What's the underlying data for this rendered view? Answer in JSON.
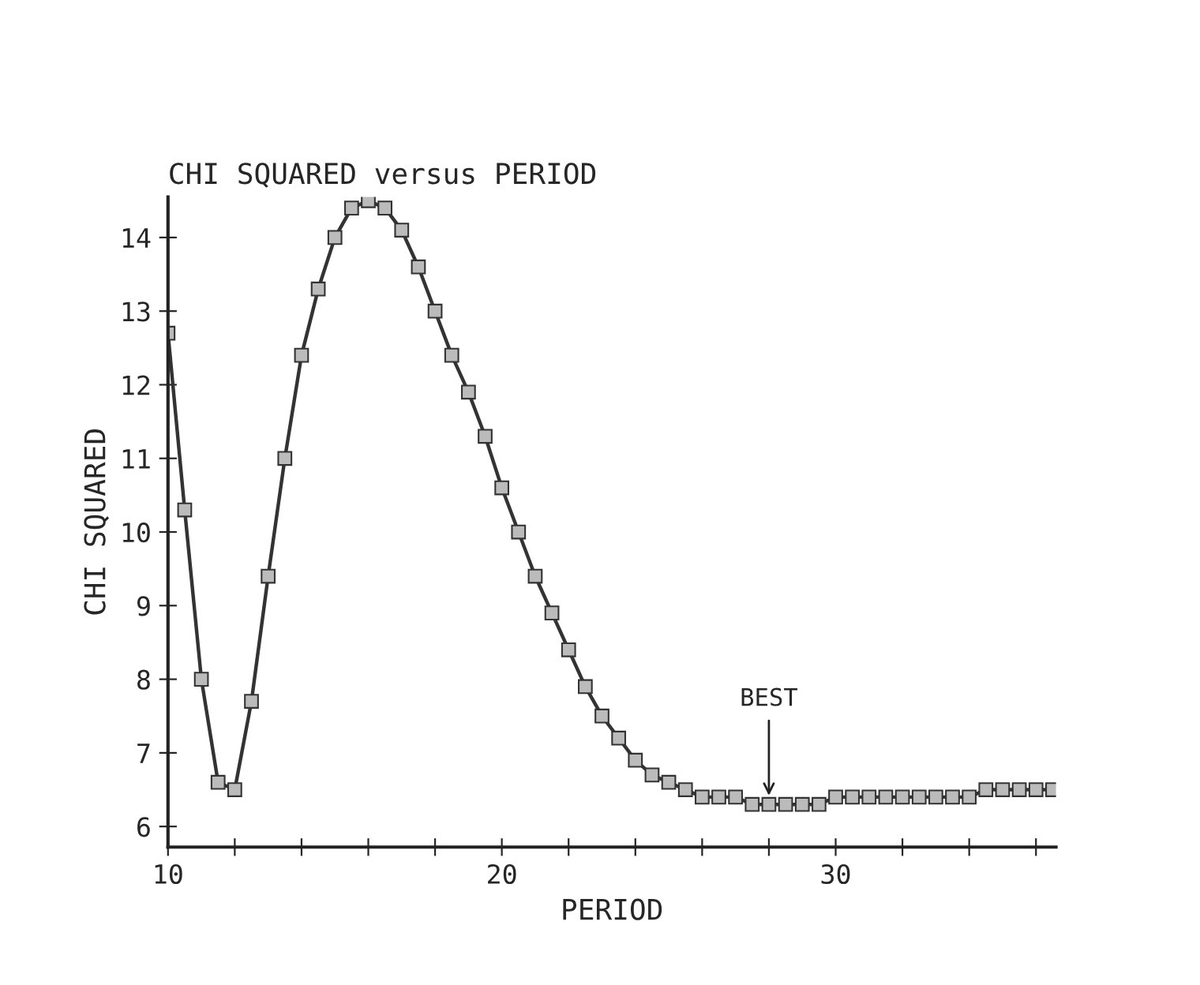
{
  "chart_data": {
    "type": "line",
    "title": "CHI SQUARED versus PERIOD",
    "xlabel": "PERIOD",
    "ylabel": "CHI SQUARED",
    "x": [
      10,
      10.5,
      11,
      11.5,
      12,
      12.5,
      13,
      13.5,
      14,
      14.5,
      15,
      15.5,
      16,
      16.5,
      17,
      17.5,
      18,
      18.5,
      19,
      19.5,
      20,
      20.5,
      21,
      21.5,
      22,
      22.5,
      23,
      23.5,
      24,
      24.5,
      25,
      25.5,
      26,
      26.5,
      27,
      27.5,
      28,
      28.5,
      29,
      29.5,
      30,
      30.5,
      31,
      31.5,
      32,
      32.5,
      33,
      33.5,
      34,
      34.5,
      35,
      35.5,
      36,
      36.5
    ],
    "series": [
      {
        "color": "#333333",
        "values": [
          12.7,
          10.3,
          8.0,
          6.6,
          6.5,
          7.7,
          9.4,
          11.0,
          12.4,
          13.3,
          14.0,
          14.4,
          14.5,
          14.4,
          14.1,
          13.6,
          13.0,
          12.4,
          11.9,
          11.3,
          10.6,
          10.0,
          9.4,
          8.9,
          8.4,
          7.9,
          7.5,
          7.2,
          6.9,
          6.7,
          6.6,
          6.5,
          6.4,
          6.4,
          6.4,
          6.3,
          6.3,
          6.3,
          6.3,
          6.3,
          6.4,
          6.4,
          6.4,
          6.4,
          6.4,
          6.4,
          6.4,
          6.4,
          6.4,
          6.5,
          6.5,
          6.5,
          6.5,
          6.5
        ]
      }
    ],
    "xlim": [
      10,
      36.6
    ],
    "ylim": [
      5.72,
      14.55
    ],
    "xticks": [
      10,
      {
        "value": 12,
        "label": null
      },
      {
        "value": 14,
        "label": null
      },
      {
        "value": 16,
        "label": null
      },
      {
        "value": 18,
        "label": null
      },
      20,
      {
        "value": 22,
        "label": null
      },
      {
        "value": 24,
        "label": null
      },
      {
        "value": 26,
        "label": null
      },
      {
        "value": 28,
        "label": null
      },
      30,
      {
        "value": 32,
        "label": null
      },
      {
        "value": 34,
        "label": null
      },
      {
        "value": 36,
        "label": null
      }
    ],
    "yticks": [
      6,
      7,
      8,
      9,
      10,
      11,
      12,
      13,
      14
    ],
    "annotations": [
      {
        "text": "BEST",
        "x": 28,
        "y": 6.3
      }
    ],
    "marker": "square",
    "line_style": "solid",
    "grid": false,
    "legend": false
  }
}
